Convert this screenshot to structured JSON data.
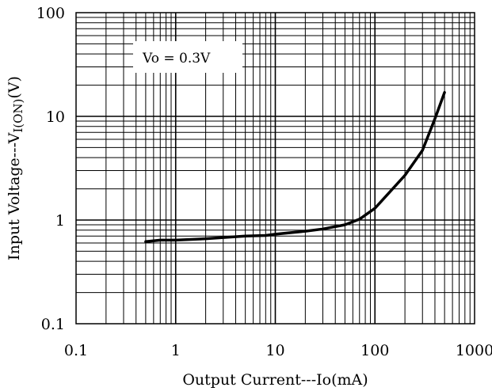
{
  "chart_data": {
    "type": "line",
    "xscale": "log",
    "yscale": "log",
    "xlim": [
      0.1,
      1000
    ],
    "ylim": [
      0.1,
      100
    ],
    "grid": true,
    "xlabel": "Output Current---Io(mA)",
    "ylabel_main": "Input Voltage---V",
    "ylabel_sub": "I(ON)",
    "ylabel_tail": "(V)",
    "annotation": "Vo = 0.3V",
    "x_ticks": [
      "0.1",
      "1",
      "10",
      "100",
      "1000"
    ],
    "y_ticks": [
      "0.1",
      "1",
      "10",
      "100"
    ],
    "series": [
      {
        "x": [
          0.5,
          0.7,
          1,
          2,
          5,
          8,
          10,
          20,
          30,
          50,
          70,
          100,
          200,
          300,
          400,
          500
        ],
        "y": [
          0.62,
          0.64,
          0.64,
          0.66,
          0.7,
          0.71,
          0.73,
          0.78,
          0.82,
          0.9,
          1.02,
          1.3,
          2.7,
          4.7,
          9.5,
          17
        ]
      }
    ],
    "line_color": "#000000"
  }
}
